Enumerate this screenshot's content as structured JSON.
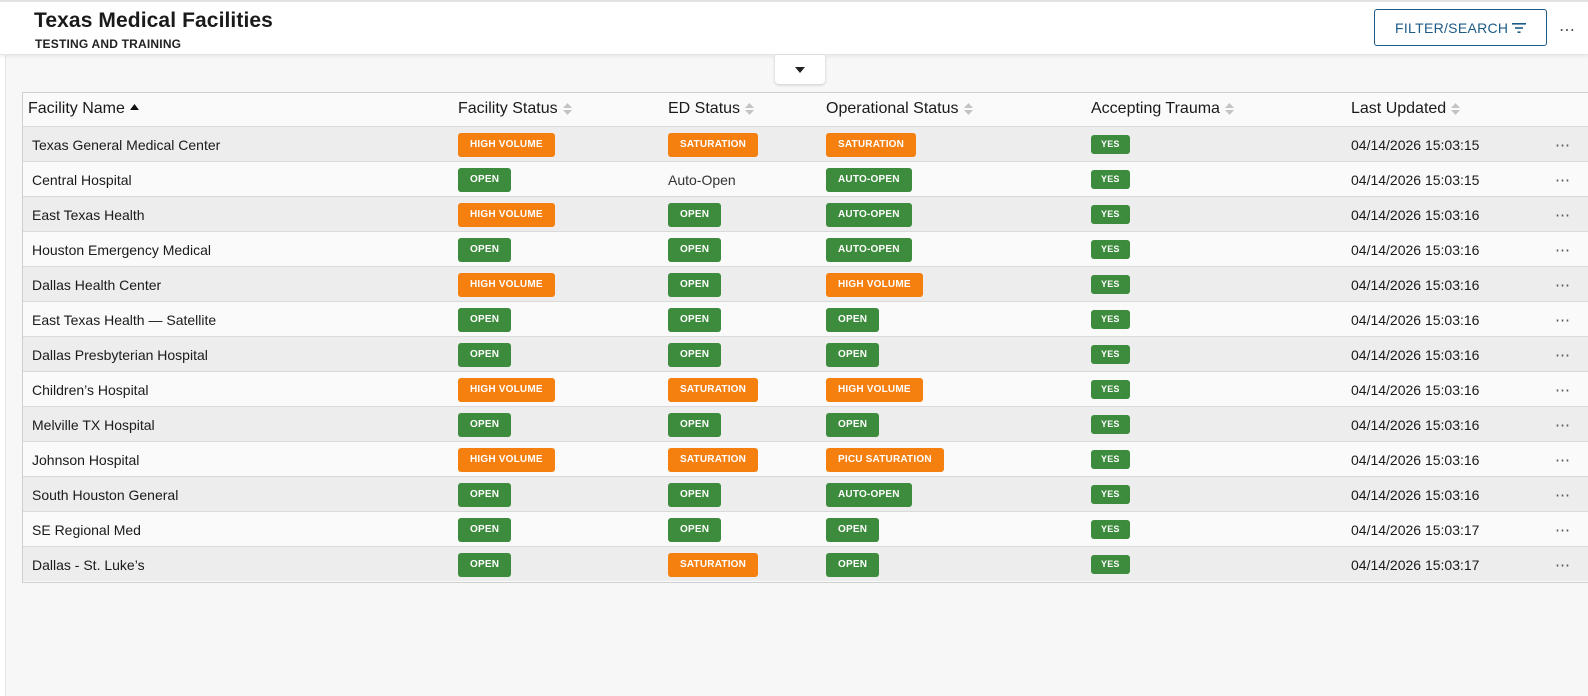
{
  "header": {
    "title": "Texas Medical Facilities",
    "subtitle": "TESTING AND TRAINING",
    "filter_label": "FILTER/SEARCH",
    "more_label": "⋯"
  },
  "colors": {
    "green": "#3d8b3d",
    "orange": "#f57f0f",
    "accent": "#1e5a86"
  },
  "columns": [
    "Facility Name",
    "Facility Status",
    "ED Status",
    "Operational Status",
    "Accepting Trauma",
    "Last Updated"
  ],
  "rows": [
    {
      "name": "Texas General Medical Center",
      "facility": {
        "text": "HIGH VOLUME",
        "color": "orange"
      },
      "ed": {
        "text": "SATURATION",
        "color": "orange"
      },
      "op": {
        "text": "SATURATION",
        "color": "orange"
      },
      "trauma": "YES",
      "updated": "04/14/2026 15:03:15"
    },
    {
      "name": "Central Hospital",
      "facility": {
        "text": "OPEN",
        "color": "green"
      },
      "ed": {
        "text": "Auto-Open",
        "color": "plain"
      },
      "op": {
        "text": "AUTO-OPEN",
        "color": "green"
      },
      "trauma": "YES",
      "updated": "04/14/2026 15:03:15"
    },
    {
      "name": "East Texas Health",
      "facility": {
        "text": "HIGH VOLUME",
        "color": "orange"
      },
      "ed": {
        "text": "OPEN",
        "color": "green"
      },
      "op": {
        "text": "AUTO-OPEN",
        "color": "green"
      },
      "trauma": "YES",
      "updated": "04/14/2026 15:03:16"
    },
    {
      "name": "Houston Emergency Medical",
      "facility": {
        "text": "OPEN",
        "color": "green"
      },
      "ed": {
        "text": "OPEN",
        "color": "green"
      },
      "op": {
        "text": "AUTO-OPEN",
        "color": "green"
      },
      "trauma": "YES",
      "updated": "04/14/2026 15:03:16"
    },
    {
      "name": "Dallas Health Center",
      "facility": {
        "text": "HIGH VOLUME",
        "color": "orange"
      },
      "ed": {
        "text": "OPEN",
        "color": "green"
      },
      "op": {
        "text": "HIGH VOLUME",
        "color": "orange"
      },
      "trauma": "YES",
      "updated": "04/14/2026 15:03:16"
    },
    {
      "name": "East Texas Health — Satellite",
      "facility": {
        "text": "OPEN",
        "color": "green"
      },
      "ed": {
        "text": "OPEN",
        "color": "green"
      },
      "op": {
        "text": "OPEN",
        "color": "green"
      },
      "trauma": "YES",
      "updated": "04/14/2026 15:03:16"
    },
    {
      "name": "Dallas Presbyterian Hospital",
      "facility": {
        "text": "OPEN",
        "color": "green"
      },
      "ed": {
        "text": "OPEN",
        "color": "green"
      },
      "op": {
        "text": "OPEN",
        "color": "green"
      },
      "trauma": "YES",
      "updated": "04/14/2026 15:03:16"
    },
    {
      "name": "Children’s Hospital",
      "facility": {
        "text": "HIGH VOLUME",
        "color": "orange"
      },
      "ed": {
        "text": "SATURATION",
        "color": "orange"
      },
      "op": {
        "text": "HIGH VOLUME",
        "color": "orange"
      },
      "trauma": "YES",
      "updated": "04/14/2026 15:03:16"
    },
    {
      "name": "Melville TX Hospital",
      "facility": {
        "text": "OPEN",
        "color": "green"
      },
      "ed": {
        "text": "OPEN",
        "color": "green"
      },
      "op": {
        "text": "OPEN",
        "color": "green"
      },
      "trauma": "YES",
      "updated": "04/14/2026 15:03:16"
    },
    {
      "name": "Johnson Hospital",
      "facility": {
        "text": "HIGH VOLUME",
        "color": "orange"
      },
      "ed": {
        "text": "SATURATION",
        "color": "orange"
      },
      "op": {
        "text": "PICU SATURATION",
        "color": "orange"
      },
      "trauma": "YES",
      "updated": "04/14/2026 15:03:16"
    },
    {
      "name": "South Houston General",
      "facility": {
        "text": "OPEN",
        "color": "green"
      },
      "ed": {
        "text": "OPEN",
        "color": "green"
      },
      "op": {
        "text": "AUTO-OPEN",
        "color": "green"
      },
      "trauma": "YES",
      "updated": "04/14/2026 15:03:16"
    },
    {
      "name": "SE Regional Med",
      "facility": {
        "text": "OPEN",
        "color": "green"
      },
      "ed": {
        "text": "OPEN",
        "color": "green"
      },
      "op": {
        "text": "OPEN",
        "color": "green"
      },
      "trauma": "YES",
      "updated": "04/14/2026 15:03:17"
    },
    {
      "name": "Dallas - St. Luke’s",
      "facility": {
        "text": "OPEN",
        "color": "green"
      },
      "ed": {
        "text": "SATURATION",
        "color": "orange"
      },
      "op": {
        "text": "OPEN",
        "color": "green"
      },
      "trauma": "YES",
      "updated": "04/14/2026 15:03:17"
    }
  ]
}
